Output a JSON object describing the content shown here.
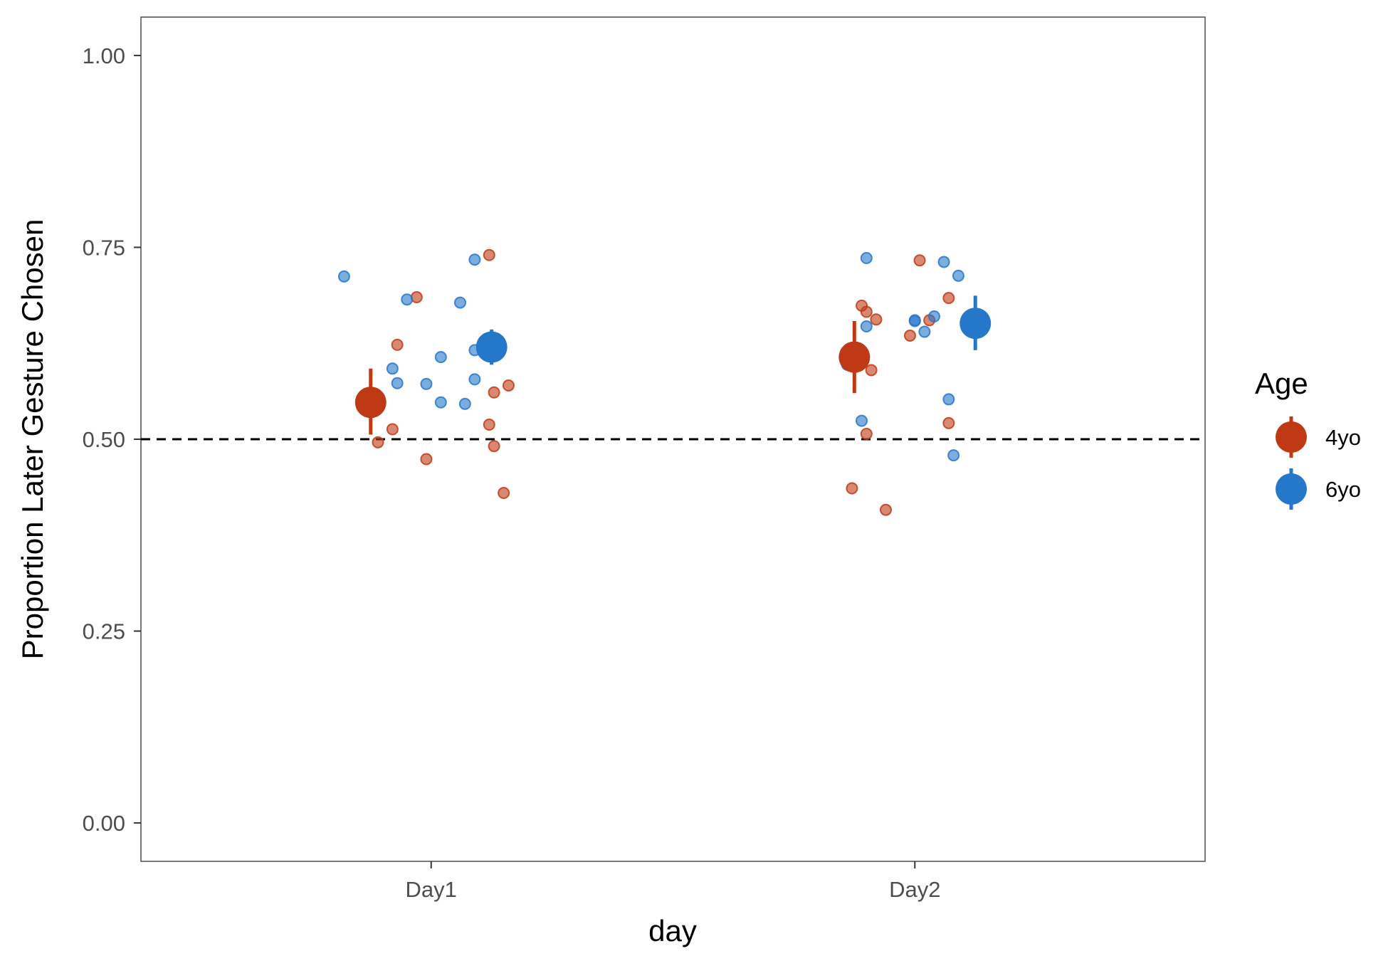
{
  "chart_data": {
    "type": "scatter",
    "title": "",
    "xlabel": "day",
    "ylabel": "Proportion Later Gesture Chosen",
    "categories": [
      "Day1",
      "Day2"
    ],
    "ylim": [
      -0.05,
      1.05
    ],
    "yticks": [
      0.0,
      0.25,
      0.5,
      0.75,
      1.0
    ],
    "ytick_labels": [
      "0.00",
      "0.25",
      "0.50",
      "0.75",
      "1.00"
    ],
    "grid": false,
    "reference_line": {
      "y": 0.5,
      "style": "dashed"
    },
    "legend": {
      "title": "Age",
      "position": "right"
    },
    "series": [
      {
        "name": "4yo",
        "color": "#BF3A14",
        "mean": [
          0.548,
          0.607
        ],
        "error_low": [
          0.506,
          0.56
        ],
        "error_high": [
          0.592,
          0.654
        ],
        "points": [
          {
            "x": 1.12,
            "y": 0.74
          },
          {
            "x": 0.97,
            "y": 0.685
          },
          {
            "x": 0.93,
            "y": 0.623
          },
          {
            "x": 1.14,
            "y": 0.627
          },
          {
            "x": 1.16,
            "y": 0.57
          },
          {
            "x": 1.13,
            "y": 0.561
          },
          {
            "x": 1.12,
            "y": 0.519
          },
          {
            "x": 0.92,
            "y": 0.513
          },
          {
            "x": 0.89,
            "y": 0.496
          },
          {
            "x": 1.13,
            "y": 0.491
          },
          {
            "x": 0.99,
            "y": 0.474
          },
          {
            "x": 1.15,
            "y": 0.43
          },
          {
            "x": 2.01,
            "y": 0.733
          },
          {
            "x": 2.07,
            "y": 0.684
          },
          {
            "x": 1.89,
            "y": 0.674
          },
          {
            "x": 1.9,
            "y": 0.666
          },
          {
            "x": 1.92,
            "y": 0.656
          },
          {
            "x": 2.03,
            "y": 0.655
          },
          {
            "x": 1.99,
            "y": 0.635
          },
          {
            "x": 1.91,
            "y": 0.59
          },
          {
            "x": 2.07,
            "y": 0.521
          },
          {
            "x": 1.9,
            "y": 0.507
          },
          {
            "x": 1.87,
            "y": 0.436
          },
          {
            "x": 1.94,
            "y": 0.408
          }
        ]
      },
      {
        "name": "6yo",
        "color": "#2577C9",
        "mean": [
          0.62,
          0.651
        ],
        "error_low": [
          0.597,
          0.616
        ],
        "error_high": [
          0.643,
          0.687
        ],
        "points": [
          {
            "x": 1.09,
            "y": 0.734
          },
          {
            "x": 0.82,
            "y": 0.712
          },
          {
            "x": 0.95,
            "y": 0.682
          },
          {
            "x": 1.06,
            "y": 0.678
          },
          {
            "x": 1.09,
            "y": 0.616
          },
          {
            "x": 1.02,
            "y": 0.607
          },
          {
            "x": 0.92,
            "y": 0.592
          },
          {
            "x": 1.09,
            "y": 0.578
          },
          {
            "x": 0.93,
            "y": 0.573
          },
          {
            "x": 0.99,
            "y": 0.572
          },
          {
            "x": 1.02,
            "y": 0.548
          },
          {
            "x": 1.07,
            "y": 0.546
          },
          {
            "x": 1.9,
            "y": 0.736
          },
          {
            "x": 2.06,
            "y": 0.731
          },
          {
            "x": 2.09,
            "y": 0.713
          },
          {
            "x": 2.04,
            "y": 0.66
          },
          {
            "x": 2.0,
            "y": 0.655
          },
          {
            "x": 2.0,
            "y": 0.654
          },
          {
            "x": 1.9,
            "y": 0.647
          },
          {
            "x": 2.02,
            "y": 0.64
          },
          {
            "x": 1.86,
            "y": 0.597
          },
          {
            "x": 2.07,
            "y": 0.552
          },
          {
            "x": 1.89,
            "y": 0.524
          },
          {
            "x": 2.08,
            "y": 0.479
          }
        ]
      }
    ]
  }
}
